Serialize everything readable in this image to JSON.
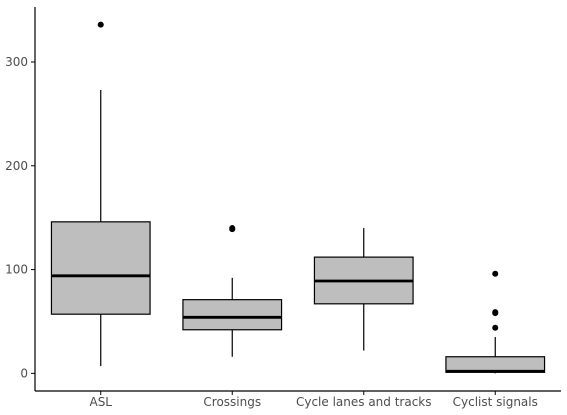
{
  "chart_data": {
    "type": "box",
    "title": "",
    "xlabel": "",
    "ylabel": "",
    "ylim": [
      -17,
      353
    ],
    "y_ticks": [
      0,
      100,
      200,
      300
    ],
    "grid": false,
    "legend": "none",
    "colors": {
      "box_fill": "#bebebe",
      "line": "#000000",
      "axis": "#000000",
      "text": "#4d4d4d"
    },
    "categories": [
      "ASL",
      "Crossings",
      "Cycle lanes and tracks",
      "Cyclist signals"
    ],
    "boxes": [
      {
        "category": "ASL",
        "whisker_low": 7,
        "q1": 57,
        "median": 94,
        "q3": 146,
        "whisker_high": 273,
        "outliers": [
          336
        ]
      },
      {
        "category": "Crossings",
        "whisker_low": 16,
        "q1": 42,
        "median": 54,
        "q3": 71,
        "whisker_high": 92,
        "outliers": [
          139,
          140
        ]
      },
      {
        "category": "Cycle lanes and tracks",
        "whisker_low": 22,
        "q1": 67,
        "median": 89,
        "q3": 112,
        "whisker_high": 140,
        "outliers": []
      },
      {
        "category": "Cyclist signals",
        "whisker_low": 0,
        "q1": 1,
        "median": 2,
        "q3": 16,
        "whisker_high": 35,
        "outliers": [
          44,
          58,
          59,
          96
        ]
      }
    ]
  }
}
